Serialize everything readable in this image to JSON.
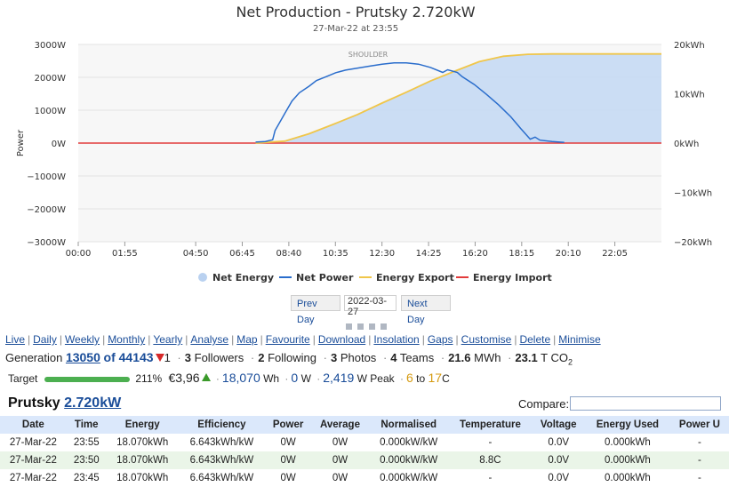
{
  "chart_data": {
    "type": "line",
    "title": "Net Production - Prutsky 2.720kW",
    "subtitle": "27-Mar-22 at 23:55",
    "ylabel": "Power",
    "annotation": "SHOULDER",
    "x_ticks": [
      "00:00",
      "01:55",
      "04:50",
      "06:45",
      "08:40",
      "10:35",
      "12:30",
      "14:25",
      "16:20",
      "18:15",
      "20:10",
      "22:05"
    ],
    "y_left_ticks": [
      "3000W",
      "2000W",
      "1000W",
      "0W",
      "−1000W",
      "−2000W",
      "−3000W"
    ],
    "y_right_ticks": [
      "20kWh",
      "10kWh",
      "0kWh",
      "−10kWh",
      "−20kWh"
    ],
    "ylim_left": [
      -3000,
      3000
    ],
    "ylim_right": [
      -20,
      20
    ],
    "xlim_hours": [
      0,
      24
    ],
    "legend_position": "bottom",
    "legend": [
      "Net Energy",
      "Net Power",
      "Energy Export",
      "Energy Import"
    ],
    "colors": {
      "net_energy": "#b9d1f0",
      "net_power": "#2a6dcc",
      "export": "#f0c64a",
      "import": "#e23b3b"
    },
    "series": [
      {
        "name": "Net Power",
        "unit": "W",
        "x": [
          7.3,
          7.7,
          8.0,
          8.1,
          8.5,
          8.8,
          9.1,
          9.5,
          9.8,
          10.2,
          10.6,
          11.0,
          11.5,
          12.0,
          12.5,
          13.0,
          13.5,
          14.0,
          14.5,
          15.0,
          15.2,
          15.6,
          15.8,
          16.3,
          16.8,
          17.3,
          17.8,
          18.2,
          18.6,
          18.8,
          19.0,
          19.5,
          20.0
        ],
        "values": [
          30,
          50,
          100,
          380,
          900,
          1280,
          1530,
          1730,
          1900,
          2020,
          2140,
          2220,
          2280,
          2340,
          2400,
          2440,
          2440,
          2400,
          2300,
          2150,
          2230,
          2150,
          2020,
          1780,
          1480,
          1160,
          800,
          450,
          120,
          180,
          90,
          50,
          20
        ]
      },
      {
        "name": "Energy Export",
        "unit": "kWh",
        "x": [
          7.3,
          8.5,
          9.5,
          10.5,
          11.5,
          12.5,
          13.5,
          14.5,
          15.5,
          16.5,
          17.5,
          18.5,
          19.5,
          20.5,
          24
        ],
        "values": [
          0,
          0.4,
          1.9,
          3.8,
          5.8,
          8.1,
          10.3,
          12.6,
          14.6,
          16.5,
          17.6,
          18.0,
          18.07,
          18.07,
          18.07
        ]
      },
      {
        "name": "Energy Import",
        "unit": "W",
        "x": [
          0,
          24
        ],
        "values": [
          0,
          0
        ]
      }
    ]
  },
  "nav": {
    "prev": "Prev Day",
    "date": "2022-03-27",
    "next": "Next Day"
  },
  "links": [
    "Live",
    "Daily",
    "Weekly",
    "Monthly",
    "Yearly",
    "Analyse",
    "Map",
    "Favourite",
    "Download",
    "Insolation",
    "Gaps",
    "Customise",
    "Delete",
    "Minimise"
  ],
  "gen": {
    "label": "Generation",
    "rank": "13050",
    "of_text": "of 44143",
    "rank_change": "1",
    "followers_n": "3",
    "followers": "Followers",
    "following_n": "2",
    "following": "Following",
    "photos_n": "3",
    "photos": "Photos",
    "teams_n": "4",
    "teams": "Teams",
    "mwh_n": "21.6",
    "mwh": "MWh",
    "co2_n": "23.1",
    "co2_unit": "T CO",
    "co2_sub": "2"
  },
  "target": {
    "label": "Target",
    "percent": "211%",
    "fraction": 2.11,
    "money": "€3,96",
    "energy_n": "18,070",
    "energy_u": "Wh",
    "power_n": "0",
    "power_u": "W",
    "peak_n": "2,419",
    "peak_u": "W Peak",
    "temp_lo": "6",
    "temp_to": "to",
    "temp_hi": "17",
    "temp_u": "C"
  },
  "system": {
    "name": "Prutsky",
    "size": "2.720kW"
  },
  "compare_label": "Compare:",
  "table": {
    "headers": [
      "Date",
      "Time",
      "Energy",
      "Efficiency",
      "Power",
      "Average",
      "Normalised",
      "Temperature",
      "Voltage",
      "Energy Used",
      "Power U"
    ],
    "rows": [
      [
        "27-Mar-22",
        "23:55",
        "18.070kWh",
        "6.643kWh/kW",
        "0W",
        "0W",
        "0.000kW/kW",
        "-",
        "0.0V",
        "0.000kWh",
        "-"
      ],
      [
        "27-Mar-22",
        "23:50",
        "18.070kWh",
        "6.643kWh/kW",
        "0W",
        "0W",
        "0.000kW/kW",
        "8.8C",
        "0.0V",
        "0.000kWh",
        "-"
      ],
      [
        "27-Mar-22",
        "23:45",
        "18.070kWh",
        "6.643kWh/kW",
        "0W",
        "0W",
        "0.000kW/kW",
        "-",
        "0.0V",
        "0.000kWh",
        "-"
      ]
    ]
  }
}
